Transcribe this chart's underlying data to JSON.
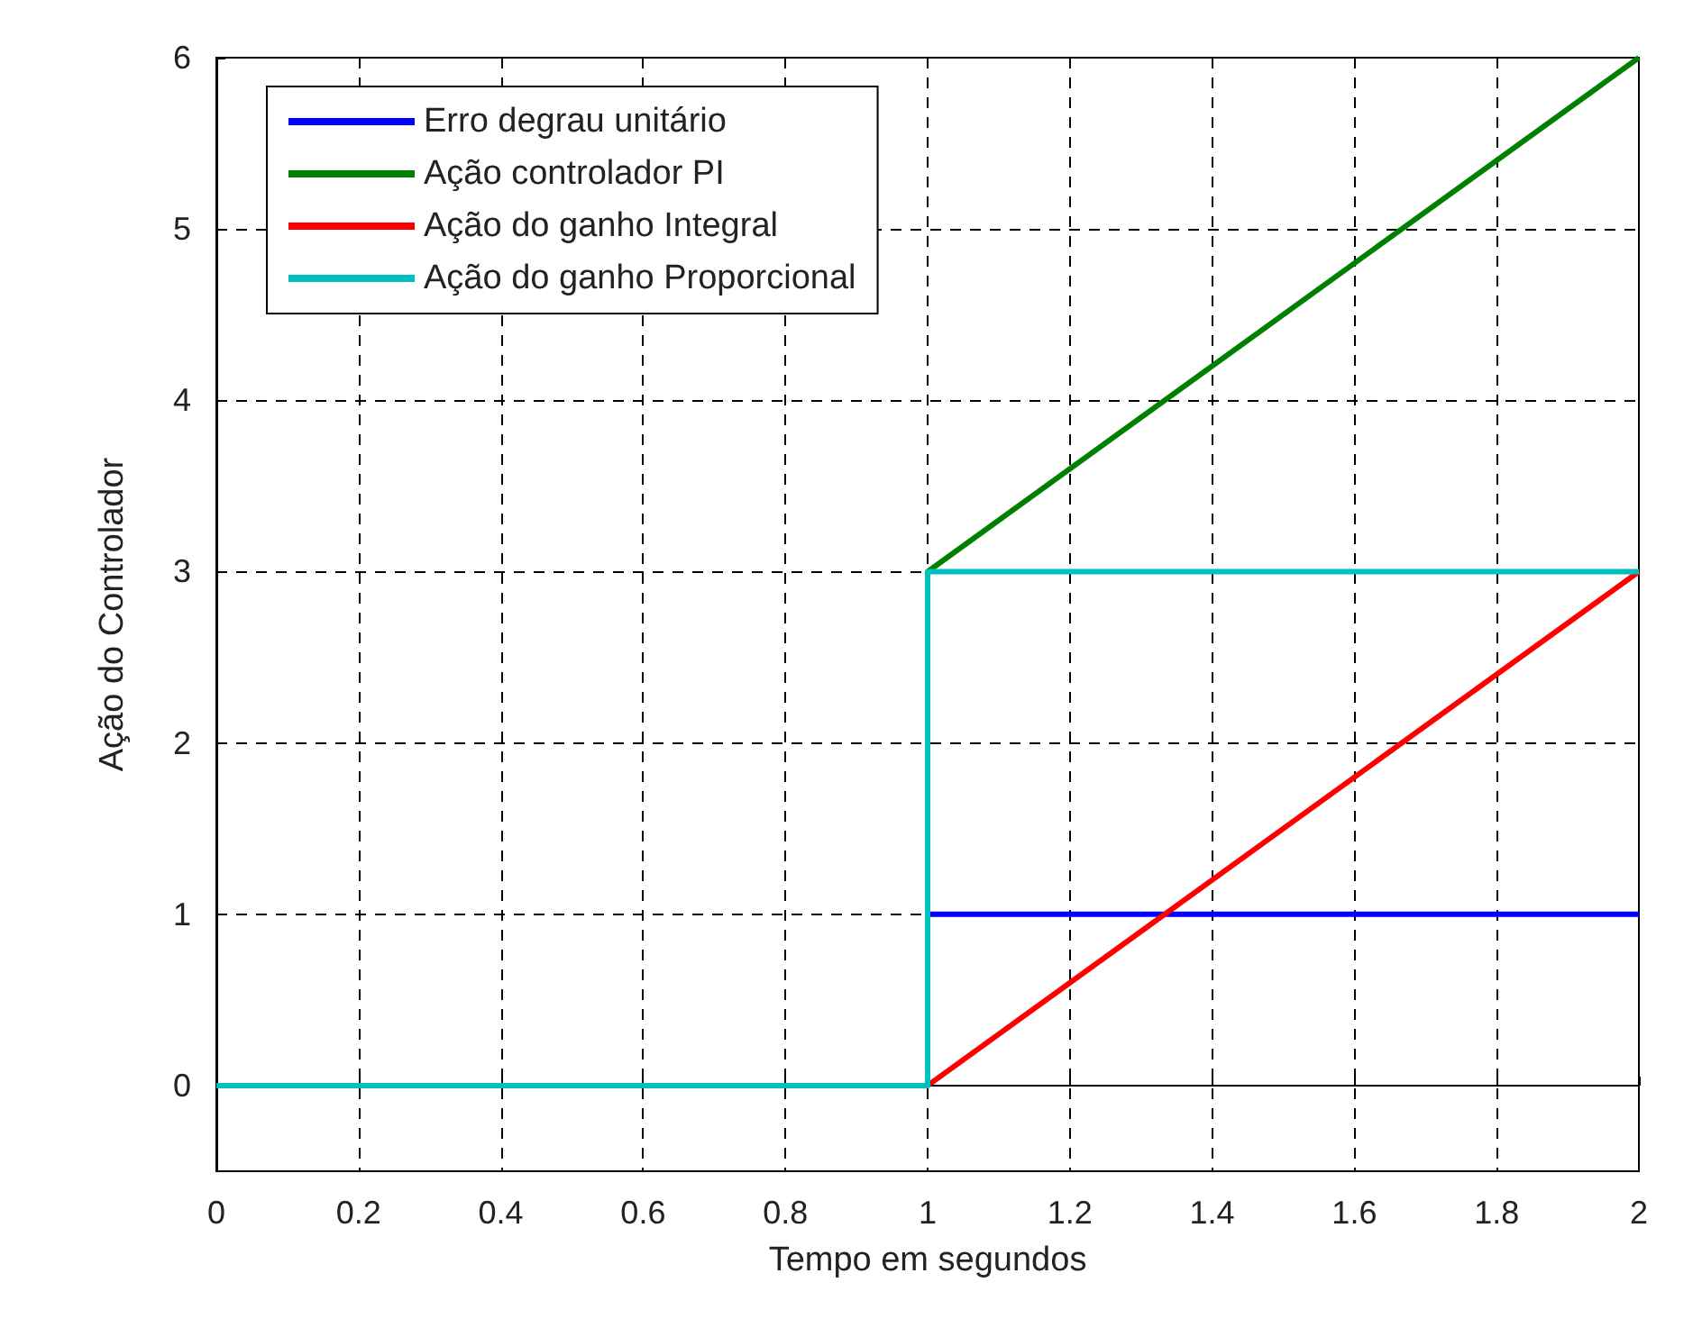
{
  "chart_data": {
    "type": "line",
    "xlabel": "Tempo em segundos",
    "ylabel": "Ação do Controlador",
    "x": [
      0,
      1,
      1,
      2
    ],
    "series": [
      {
        "name": "Erro degrau unitário",
        "color": "#0000ff",
        "values": [
          null,
          null,
          1,
          1
        ]
      },
      {
        "name": "Ação controlador PI",
        "color": "#008000",
        "values": [
          null,
          null,
          3,
          6
        ]
      },
      {
        "name": "Ação do ganho Integral",
        "color": "#ff0000",
        "values": [
          null,
          null,
          0,
          3
        ]
      },
      {
        "name": "Ação do ganho Proporcional",
        "color": "#00bfbf",
        "values": [
          0,
          0,
          3,
          3
        ]
      }
    ],
    "xlim": [
      0,
      2
    ],
    "xticks": [
      0,
      0.2,
      0.4,
      0.6,
      0.8,
      1,
      1.2,
      1.4,
      1.6,
      1.8,
      2
    ],
    "ylim": [
      -0.5,
      6
    ],
    "yticks": [
      0,
      1,
      2,
      3,
      4,
      5,
      6
    ],
    "grid": true,
    "legend": "top left",
    "marker": "none",
    "line_style": "solid"
  }
}
